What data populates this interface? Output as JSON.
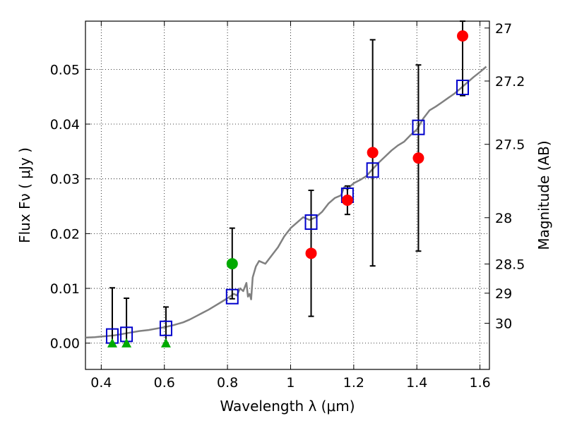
{
  "chart_data": {
    "type": "scatter",
    "xlabel": "Wavelength  λ (μm)",
    "ylabel": "Flux  Fν  ( μJy )",
    "ylabel2": "Magnitude (AB)",
    "xlim": [
      0.35,
      1.63
    ],
    "ylim": [
      -0.0048,
      0.0588
    ],
    "grid": true,
    "x_ticks": [
      0.4,
      0.6,
      0.8,
      1.0,
      1.2,
      1.4,
      1.6
    ],
    "x_tick_labels": [
      "0.4",
      "0.6",
      "0.8",
      "1",
      "1.2",
      "1.4",
      "1.6"
    ],
    "y_ticks": [
      0.0,
      0.01,
      0.02,
      0.03,
      0.04,
      0.05
    ],
    "y_tick_labels": [
      "0.00",
      "0.01",
      "0.02",
      "0.03",
      "0.04",
      "0.05"
    ],
    "mag_ticks": [
      27,
      27.2,
      27.5,
      28,
      28.5,
      29,
      30
    ],
    "mag_tick_labels": [
      "27",
      "27.2",
      "27.5",
      "28",
      "28.5",
      "29",
      "30"
    ],
    "colors": {
      "model": "#808080",
      "model_flux": "#0000cc",
      "detection": "#ff0000",
      "detection_green": "#00aa00",
      "upper_limit": "#00aa00",
      "errorbar": "#000000"
    },
    "series": [
      {
        "kind": "model_spectrum",
        "x": [
          0.35,
          0.38,
          0.4,
          0.42,
          0.44,
          0.46,
          0.48,
          0.5,
          0.52,
          0.55,
          0.58,
          0.6,
          0.63,
          0.66,
          0.68,
          0.7,
          0.72,
          0.74,
          0.76,
          0.78,
          0.8,
          0.81,
          0.82,
          0.83,
          0.84,
          0.85,
          0.86,
          0.865,
          0.87,
          0.875,
          0.88,
          0.89,
          0.9,
          0.92,
          0.94,
          0.96,
          0.98,
          1.0,
          1.02,
          1.04,
          1.06,
          1.08,
          1.1,
          1.12,
          1.14,
          1.16,
          1.17,
          1.18,
          1.19,
          1.2,
          1.22,
          1.24,
          1.26,
          1.28,
          1.3,
          1.32,
          1.34,
          1.36,
          1.38,
          1.4,
          1.42,
          1.44,
          1.46,
          1.48,
          1.5,
          1.52,
          1.54,
          1.56,
          1.58,
          1.6,
          1.62
        ],
        "y": [
          0.001,
          0.0011,
          0.0012,
          0.0013,
          0.0014,
          0.0016,
          0.0018,
          0.002,
          0.0022,
          0.0024,
          0.0027,
          0.0029,
          0.0033,
          0.0038,
          0.0043,
          0.0049,
          0.0055,
          0.0061,
          0.0068,
          0.0075,
          0.0082,
          0.0086,
          0.009,
          0.0087,
          0.01,
          0.0095,
          0.011,
          0.0085,
          0.009,
          0.008,
          0.012,
          0.014,
          0.015,
          0.0145,
          0.016,
          0.0175,
          0.0195,
          0.021,
          0.022,
          0.023,
          0.0225,
          0.023,
          0.024,
          0.0255,
          0.0265,
          0.027,
          0.0285,
          0.028,
          0.0287,
          0.0292,
          0.0298,
          0.0305,
          0.0318,
          0.033,
          0.0341,
          0.0352,
          0.0361,
          0.0368,
          0.038,
          0.039,
          0.041,
          0.0425,
          0.0432,
          0.044,
          0.0448,
          0.0456,
          0.0466,
          0.0476,
          0.0486,
          0.0495,
          0.0505
        ]
      },
      {
        "kind": "model_flux",
        "marker": "square",
        "x": [
          0.435,
          0.48,
          0.605,
          0.815,
          1.065,
          1.18,
          1.26,
          1.405,
          1.545
        ],
        "y": [
          0.0013,
          0.0016,
          0.0027,
          0.0085,
          0.0221,
          0.027,
          0.0316,
          0.0394,
          0.0467
        ]
      },
      {
        "kind": "detection",
        "marker": "circle",
        "x": [
          1.065,
          1.18,
          1.26,
          1.405,
          1.545
        ],
        "y": [
          0.0164,
          0.0261,
          0.0348,
          0.0338,
          0.0561
        ],
        "yerr_low": [
          0.0049,
          0.0235,
          0.0141,
          0.0168,
          0.0452
        ],
        "yerr_high": [
          0.0279,
          0.0287,
          0.0554,
          0.0508,
          0.0588
        ]
      },
      {
        "kind": "detection_green",
        "marker": "circle",
        "x": [
          0.815
        ],
        "y": [
          0.0145
        ],
        "yerr_low": [
          0.0081
        ],
        "yerr_high": [
          0.021
        ]
      },
      {
        "kind": "upper_limit",
        "marker": "triangle",
        "x": [
          0.435,
          0.48,
          0.605
        ],
        "y": [
          0.0,
          0.0,
          0.0
        ],
        "yerr_low": [
          0.0,
          0.0,
          0.0
        ],
        "yerr_high": [
          0.0101,
          0.0082,
          0.0066
        ]
      }
    ]
  }
}
